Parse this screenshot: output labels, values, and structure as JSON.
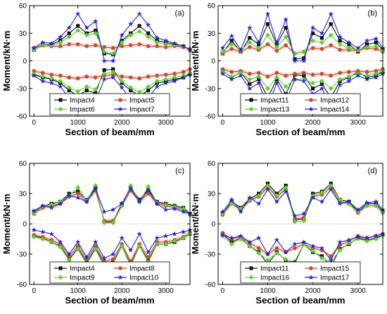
{
  "colors": {
    "black": "#111111",
    "red": "#c0502a",
    "green": "#5bd12e",
    "blue": "#2222dd",
    "band": "#f2b8c0"
  },
  "chart_data": [
    {
      "type": "line",
      "panel_label": "(a)",
      "xlabel": "Section of beam/mm",
      "ylabel": "Moment/kN·m",
      "xlim": [
        -100,
        3550
      ],
      "ylim": [
        -60,
        60
      ],
      "xticks": [
        0,
        1000,
        2000,
        3000
      ],
      "yticks": [
        -60,
        -30,
        0,
        30,
        60
      ],
      "x": [
        0,
        200,
        400,
        600,
        800,
        1000,
        1200,
        1400,
        1600,
        1800,
        2000,
        2200,
        2400,
        2600,
        2800,
        3000,
        3200,
        3400,
        3550
      ],
      "series": [
        {
          "name": "Impact4",
          "color": "black",
          "marker": "square",
          "pos": [
            12,
            17,
            18,
            22,
            30,
            38,
            30,
            33,
            8,
            7,
            22,
            30,
            38,
            30,
            22,
            20,
            18,
            16,
            12
          ],
          "neg": [
            -15,
            -18,
            -20,
            -24,
            -32,
            -38,
            -32,
            -35,
            -10,
            -9,
            -24,
            -32,
            -38,
            -32,
            -24,
            -22,
            -20,
            -18,
            -14
          ]
        },
        {
          "name": "Impact5",
          "color": "red",
          "marker": "circle",
          "pos": [
            14,
            17,
            16,
            16,
            18,
            18,
            16,
            17,
            15,
            14,
            16,
            17,
            18,
            16,
            16,
            15,
            16,
            15,
            13
          ],
          "neg": [
            -11,
            -13,
            -15,
            -16,
            -18,
            -19,
            -17,
            -18,
            -16,
            -15,
            -17,
            -18,
            -19,
            -17,
            -16,
            -15,
            -14,
            -12,
            -9
          ]
        },
        {
          "name": "Impact6",
          "color": "green",
          "marker": "diamond",
          "pos": [
            12,
            17,
            17,
            20,
            26,
            33,
            28,
            30,
            10,
            8,
            20,
            28,
            32,
            26,
            20,
            18,
            17,
            16,
            11
          ],
          "neg": [
            -14,
            -17,
            -19,
            -22,
            -29,
            -33,
            -28,
            -31,
            -14,
            -12,
            -22,
            -29,
            -34,
            -28,
            -22,
            -20,
            -18,
            -16,
            -13
          ]
        },
        {
          "name": "Impact7",
          "color": "blue",
          "marker": "star",
          "pos": [
            14,
            20,
            19,
            26,
            36,
            51,
            36,
            43,
            0,
            0,
            28,
            40,
            51,
            39,
            25,
            22,
            19,
            16,
            12
          ],
          "neg": [
            -16,
            -22,
            -24,
            -28,
            -40,
            -52,
            -40,
            -44,
            -20,
            -18,
            -29,
            -42,
            -52,
            -40,
            -28,
            -24,
            -22,
            -18,
            -15
          ]
        }
      ]
    },
    {
      "type": "line",
      "panel_label": "(b)",
      "xlabel": "Section of beam/mm",
      "ylabel": "Moment/kN·m",
      "xlim": [
        -100,
        3550
      ],
      "ylim": [
        -60,
        60
      ],
      "xticks": [
        0,
        1000,
        2000,
        3000
      ],
      "yticks": [
        -60,
        -30,
        0,
        30,
        60
      ],
      "x": [
        0,
        200,
        400,
        600,
        800,
        1000,
        1200,
        1400,
        1600,
        1800,
        2000,
        2200,
        2400,
        2600,
        2800,
        3000,
        3200,
        3400,
        3550
      ],
      "series": [
        {
          "name": "Impact11",
          "color": "black",
          "marker": "square",
          "pos": [
            8,
            22,
            10,
            25,
            18,
            40,
            18,
            36,
            2,
            3,
            30,
            25,
            40,
            22,
            18,
            10,
            18,
            20,
            12
          ],
          "neg": [
            -11,
            -18,
            -12,
            -25,
            -20,
            -40,
            -20,
            -36,
            -15,
            -16,
            -30,
            -25,
            -40,
            -22,
            -18,
            -12,
            -18,
            -16,
            -12
          ]
        },
        {
          "name": "Impact12",
          "color": "red",
          "marker": "circle",
          "pos": [
            8,
            13,
            10,
            15,
            12,
            18,
            11,
            17,
            8,
            10,
            14,
            13,
            17,
            12,
            12,
            11,
            14,
            13,
            10
          ],
          "neg": [
            -9,
            -12,
            -11,
            -14,
            -13,
            -17,
            -13,
            -16,
            -14,
            -13,
            -15,
            -14,
            -16,
            -13,
            -12,
            -11,
            -12,
            -11,
            -9
          ]
        },
        {
          "name": "Impact13",
          "color": "green",
          "marker": "diamond",
          "pos": [
            10,
            18,
            12,
            20,
            14,
            28,
            15,
            26,
            8,
            10,
            22,
            20,
            28,
            18,
            14,
            12,
            15,
            16,
            11
          ],
          "neg": [
            -12,
            -17,
            -13,
            -20,
            -17,
            -30,
            -18,
            -28,
            -20,
            -20,
            -24,
            -22,
            -30,
            -20,
            -17,
            -14,
            -16,
            -14,
            -11
          ]
        },
        {
          "name": "Impact14",
          "color": "blue",
          "marker": "star",
          "pos": [
            14,
            27,
            12,
            36,
            20,
            51,
            20,
            45,
            0,
            0,
            36,
            30,
            51,
            26,
            20,
            14,
            22,
            24,
            14
          ],
          "neg": [
            -14,
            -20,
            -16,
            -30,
            -24,
            -50,
            -24,
            -44,
            -20,
            -22,
            -36,
            -30,
            -50,
            -26,
            -22,
            -16,
            -20,
            -18,
            -14
          ]
        }
      ]
    },
    {
      "type": "line",
      "panel_label": "(c)",
      "xlabel": "Section of beam/mm",
      "ylabel": "Moment/kN·m",
      "xlim": [
        -100,
        3550
      ],
      "ylim": [
        -60,
        60
      ],
      "xticks": [
        0,
        1000,
        2000,
        3000
      ],
      "yticks": [
        -60,
        -30,
        0,
        30,
        60
      ],
      "x": [
        0,
        200,
        400,
        600,
        800,
        1000,
        1200,
        1400,
        1600,
        1800,
        2000,
        2200,
        2400,
        2600,
        2800,
        3000,
        3200,
        3400,
        3550
      ],
      "series": [
        {
          "name": "Impact4",
          "color": "black",
          "marker": "square",
          "pos": [
            12,
            17,
            20,
            22,
            30,
            32,
            24,
            36,
            2,
            2,
            20,
            36,
            24,
            34,
            22,
            20,
            18,
            16,
            10
          ],
          "neg": [
            -12,
            -14,
            -18,
            -22,
            -35,
            -24,
            -38,
            -24,
            -40,
            -38,
            -22,
            -40,
            -22,
            -36,
            -20,
            -20,
            -18,
            -14,
            -10
          ]
        },
        {
          "name": "Impact8",
          "color": "red",
          "marker": "circle",
          "pos": [
            10,
            16,
            18,
            20,
            27,
            30,
            22,
            33,
            3,
            3,
            18,
            33,
            22,
            30,
            20,
            18,
            16,
            14,
            9
          ],
          "neg": [
            -11,
            -13,
            -16,
            -20,
            -32,
            -22,
            -35,
            -22,
            -37,
            -35,
            -20,
            -37,
            -20,
            -33,
            -18,
            -18,
            -16,
            -13,
            -9
          ]
        },
        {
          "name": "Impact9",
          "color": "green",
          "marker": "diamond",
          "pos": [
            11,
            17,
            19,
            22,
            28,
            36,
            23,
            38,
            1,
            1,
            18,
            38,
            22,
            37,
            21,
            19,
            17,
            15,
            9
          ],
          "neg": [
            -13,
            -15,
            -18,
            -23,
            -36,
            -25,
            -40,
            -25,
            -43,
            -40,
            -22,
            -42,
            -22,
            -38,
            -20,
            -20,
            -17,
            -14,
            -10
          ]
        },
        {
          "name": "Impact10",
          "color": "blue",
          "marker": "star",
          "pos": [
            13,
            18,
            16,
            20,
            28,
            26,
            22,
            35,
            12,
            14,
            20,
            35,
            22,
            33,
            20,
            14,
            15,
            12,
            10
          ],
          "neg": [
            -6,
            -8,
            -10,
            -18,
            -30,
            -18,
            -33,
            -18,
            -34,
            -30,
            -14,
            -26,
            -10,
            -28,
            -14,
            -12,
            -10,
            -8,
            -6
          ]
        }
      ]
    },
    {
      "type": "line",
      "panel_label": "(d)",
      "xlabel": "Section of beam/mm",
      "ylabel": "Moment/kN·m",
      "xlim": [
        -100,
        3550
      ],
      "ylim": [
        -60,
        60
      ],
      "xticks": [
        0,
        1000,
        2000,
        3000
      ],
      "yticks": [
        -60,
        -30,
        0,
        30,
        60
      ],
      "x": [
        0,
        200,
        400,
        600,
        800,
        1000,
        1200,
        1400,
        1600,
        1800,
        2000,
        2200,
        2400,
        2600,
        2800,
        3000,
        3200,
        3400,
        3550
      ],
      "series": [
        {
          "name": "Impact11",
          "color": "black",
          "marker": "square",
          "pos": [
            10,
            22,
            16,
            25,
            30,
            40,
            30,
            38,
            4,
            5,
            30,
            32,
            40,
            24,
            22,
            12,
            20,
            20,
            12
          ],
          "neg": [
            -10,
            -18,
            -14,
            -22,
            -28,
            -40,
            -28,
            -36,
            -38,
            -20,
            -28,
            -32,
            -42,
            -25,
            -20,
            -14,
            -16,
            -14,
            -11
          ]
        },
        {
          "name": "Impact15",
          "color": "red",
          "marker": "circle",
          "pos": [
            9,
            20,
            14,
            23,
            27,
            36,
            27,
            34,
            5,
            6,
            27,
            29,
            36,
            22,
            20,
            11,
            18,
            18,
            11
          ],
          "neg": [
            -9,
            -15,
            -13,
            -19,
            -24,
            -30,
            -24,
            -28,
            -24,
            -20,
            -24,
            -26,
            -32,
            -21,
            -17,
            -12,
            -14,
            -12,
            -10
          ]
        },
        {
          "name": "Impact16",
          "color": "green",
          "marker": "diamond",
          "pos": [
            10,
            20,
            15,
            24,
            28,
            38,
            28,
            36,
            2,
            3,
            28,
            31,
            38,
            24,
            20,
            12,
            18,
            18,
            11
          ],
          "neg": [
            -12,
            -20,
            -15,
            -22,
            -29,
            -36,
            -29,
            -35,
            -40,
            -20,
            -27,
            -34,
            -38,
            -26,
            -19,
            -15,
            -17,
            -15,
            -12
          ]
        },
        {
          "name": "Impact17",
          "color": "blue",
          "marker": "star",
          "pos": [
            12,
            24,
            12,
            26,
            20,
            34,
            22,
            32,
            8,
            10,
            26,
            22,
            34,
            20,
            22,
            14,
            21,
            22,
            14
          ],
          "neg": [
            -11,
            -14,
            -12,
            -18,
            -14,
            -30,
            -16,
            -28,
            -20,
            -18,
            -22,
            -24,
            -36,
            -18,
            -16,
            -13,
            -14,
            -12,
            -10
          ]
        }
      ]
    }
  ]
}
